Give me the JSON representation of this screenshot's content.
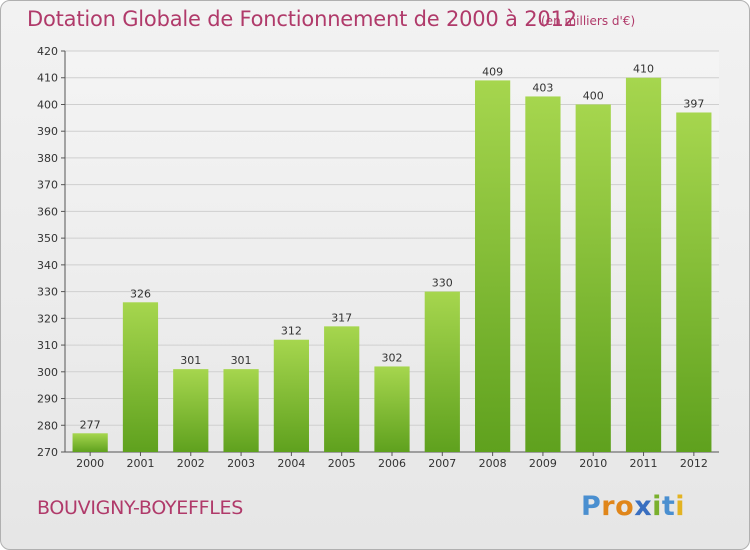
{
  "header": {
    "title": "Dotation Globale de Fonctionnement de 2000 à 2012",
    "subtitle": "(en milliers d'€)"
  },
  "footer": {
    "commune": "BOUVIGNY-BOYEFFLES",
    "logo_text": "Proxiti"
  },
  "colors": {
    "bar_light": "#a6d64e",
    "bar_dark": "#5fa11e",
    "title": "#b03a6a",
    "grid": "#cfcfcf"
  },
  "chart_data": {
    "type": "bar",
    "title": "Dotation Globale de Fonctionnement de 2000 à 2012",
    "subtitle": "(en milliers d'€)",
    "categories": [
      "2000",
      "2001",
      "2002",
      "2003",
      "2004",
      "2005",
      "2006",
      "2007",
      "2008",
      "2009",
      "2010",
      "2011",
      "2012"
    ],
    "values": [
      277,
      326,
      301,
      301,
      312,
      317,
      302,
      330,
      409,
      403,
      400,
      410,
      397
    ],
    "ylim": [
      270,
      420
    ],
    "yticks": [
      270,
      280,
      290,
      300,
      310,
      320,
      330,
      340,
      350,
      360,
      370,
      380,
      390,
      400,
      410,
      420
    ],
    "grid": true,
    "xlabel": "",
    "ylabel": ""
  }
}
